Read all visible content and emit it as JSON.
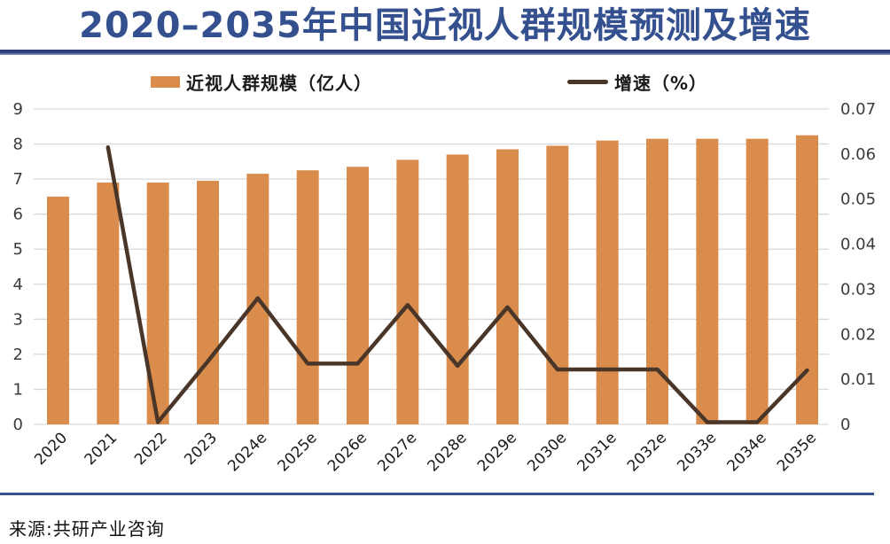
{
  "page": {
    "title": "2020–2035年中国近视人群规模预测及增速",
    "source": "来源:共研产业咨询"
  },
  "colors": {
    "title_text": "#35508F",
    "title_rule_top": "#2C4077",
    "title_rule_bottom": "#8E9EC5",
    "bottom_rule": "#35508C",
    "bar": "#D98C4B",
    "line": "#4A3628",
    "grid": "#D9D9D9",
    "axis_text": "#3C3C3C",
    "category_text": "#1A1A1A"
  },
  "chart_data": {
    "type": "bar",
    "subtype": "bar+line combo, dual axis",
    "title": "2020–2035年中国近视人群规模预测及增速",
    "categories": [
      "2020",
      "2021",
      "2022",
      "2023",
      "2024e",
      "2025e",
      "2026e",
      "2027e",
      "2028e",
      "2029e",
      "2030e",
      "2031e",
      "2032e",
      "2033e",
      "2034e",
      "2035e"
    ],
    "series": [
      {
        "name": "近视人群规模（亿人）",
        "type": "bar",
        "axis": "left",
        "values": [
          6.5,
          6.9,
          6.9,
          6.95,
          7.15,
          7.25,
          7.35,
          7.55,
          7.7,
          7.85,
          7.95,
          8.1,
          8.15,
          8.15,
          8.15,
          8.25
        ]
      },
      {
        "name": "增速（%）",
        "type": "line",
        "axis": "right",
        "values": [
          null,
          0.0615,
          0,
          0.014,
          0.028,
          0.0135,
          0.0135,
          0.0265,
          0.013,
          0.026,
          0.0122,
          0.0122,
          0.0122,
          0,
          0,
          0.012
        ]
      }
    ],
    "left_axis": {
      "min": 0,
      "max": 9,
      "ticks": [
        0,
        1,
        2,
        3,
        4,
        5,
        6,
        7,
        8,
        9
      ]
    },
    "right_axis": {
      "min": 0,
      "max": 0.07,
      "ticks": [
        0,
        0.01,
        0.02,
        0.03,
        0.04,
        0.05,
        0.06,
        0.07
      ],
      "tick_labels": [
        "0",
        "0.01",
        "0.02",
        "0.03",
        "0.04",
        "0.05",
        "0.06",
        "0.07"
      ]
    },
    "grid": true,
    "legend_position": "top",
    "x_label_rotation": -45
  }
}
